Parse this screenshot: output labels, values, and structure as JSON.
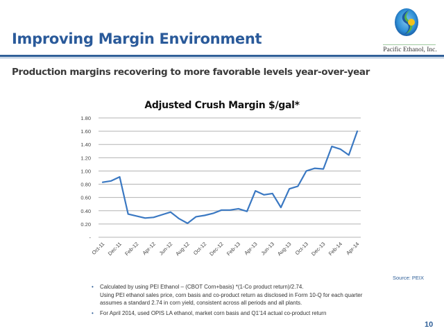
{
  "header": {
    "title": "Improving Margin Environment",
    "company_name": "Pacific Ethanol, Inc.",
    "logo_icon": "pacific-ethanol-logo-icon",
    "accent_color": "#2f5f98"
  },
  "subtitle": "Production margins recovering to more favorable levels year-over-year",
  "chart_data": {
    "type": "line",
    "title": "Adjusted Crush Margin $/gal*",
    "xlabel": "",
    "ylabel": "",
    "ylim": [
      0,
      1.8
    ],
    "yticks": [
      0,
      0.2,
      0.4,
      0.6,
      0.8,
      1.0,
      1.2,
      1.4,
      1.6,
      1.8
    ],
    "ytick_labels": [
      "-",
      "0.20",
      "0.40",
      "0.60",
      "0.80",
      "1.00",
      "1.20",
      "1.40",
      "1.60",
      "1.80"
    ],
    "grid": true,
    "legend": "none",
    "x": [
      "Oct-11",
      "Nov-11",
      "Dec-11",
      "Jan-12",
      "Feb-12",
      "Mar-12",
      "Apr-12",
      "May-12",
      "Jun-12",
      "Jul-12",
      "Aug-12",
      "Sep-12",
      "Oct-12",
      "Nov-12",
      "Dec-12",
      "Jan-13",
      "Feb-13",
      "Mar-13",
      "Apr-13",
      "May-13",
      "Jun-13",
      "Jul-13",
      "Aug-13",
      "Sep-13",
      "Oct-13",
      "Nov-13",
      "Dec-13",
      "Jan-14",
      "Feb-14",
      "Mar-14",
      "Apr-14"
    ],
    "xtick_labels": [
      "Oct-11",
      "Dec-11",
      "Feb-12",
      "Apr-12",
      "Jun-12",
      "Aug-12",
      "Oct-12",
      "Dec-12",
      "Feb-13",
      "Apr-13",
      "Jun-13",
      "Aug-13",
      "Oct-13",
      "Dec-13",
      "Feb-14",
      "Apr-14"
    ],
    "series": [
      {
        "name": "Adjusted Crush Margin",
        "color": "#3a78c2",
        "values": [
          0.83,
          0.85,
          0.91,
          0.35,
          0.32,
          0.29,
          0.3,
          0.34,
          0.38,
          0.28,
          0.21,
          0.31,
          0.33,
          0.36,
          0.41,
          0.41,
          0.43,
          0.39,
          0.7,
          0.64,
          0.66,
          0.45,
          0.73,
          0.77,
          1.0,
          1.04,
          1.03,
          1.37,
          1.33,
          1.24,
          1.6
        ]
      }
    ]
  },
  "source": "Source: PEIX",
  "notes": [
    "Calculated by using PEI Ethanol – (CBOT Corn+basis) *(1-Co product return)/2.74.",
    "For April 2014, used OPIS LA ethanol, market corn basis and Q1’14 actual co-product return"
  ],
  "note_continuation": "Using PEI ethanol sales price, corn basis and co-product return as disclosed in Form 10-Q for each quarter assumes a standard 2.74 in corn yield, consistent across all periods and all plants.",
  "bullet_glyph": "•",
  "page_number": "10"
}
